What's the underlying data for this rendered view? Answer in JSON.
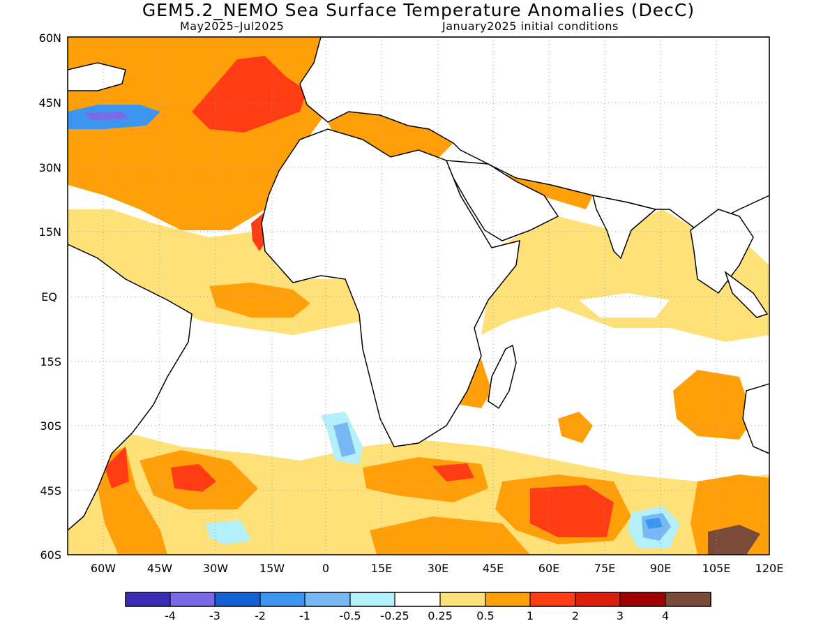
{
  "title": "GEM5.2_NEMO Sea Surface Temperature Anomalies (DecC)",
  "subtitle_left": "May2025–Jul2025",
  "subtitle_right": "January2025 initial conditions",
  "lat_labels": [
    "60N",
    "45N",
    "30N",
    "15N",
    "EQ",
    "15S",
    "30S",
    "45S",
    "60S"
  ],
  "lon_labels": [
    "60W",
    "45W",
    "30W",
    "15W",
    "0",
    "15E",
    "30E",
    "45E",
    "60E",
    "75E",
    "90E",
    "105E",
    "120E"
  ],
  "legend": {
    "colors": [
      "#3b2db5",
      "#7b6ae6",
      "#1460d2",
      "#3c96f0",
      "#78b9f5",
      "#b4f0fa",
      "#ffffff",
      "#ffe17a",
      "#ffa00a",
      "#ff3c14",
      "#dc1e0a",
      "#a00000",
      "#7b4b3a"
    ],
    "labels": [
      "-4",
      "-3",
      "-2",
      "-1",
      "-0.5",
      "-0.25",
      "0.25",
      "0.5",
      "1",
      "2",
      "3",
      "4"
    ]
  }
}
